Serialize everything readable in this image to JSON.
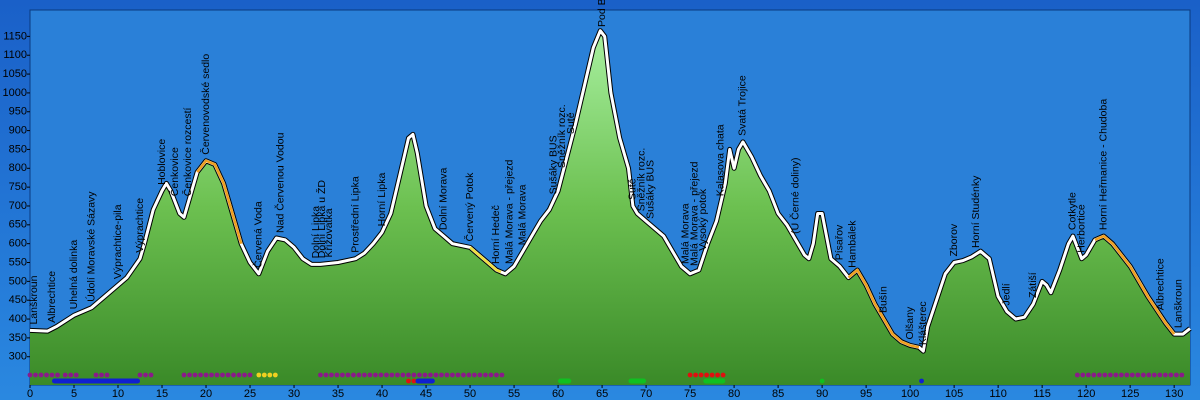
{
  "chart_data": {
    "type": "profile",
    "x": [
      0,
      2,
      3,
      5,
      7,
      9,
      11,
      12.5,
      13,
      14,
      15,
      15.5,
      16,
      17,
      17.5,
      18,
      19,
      20,
      21,
      22,
      23,
      24,
      25,
      26,
      27,
      28,
      29,
      30,
      31,
      32,
      33,
      35,
      37,
      38,
      39,
      40,
      41,
      42,
      43,
      43.5,
      44,
      45,
      46,
      47,
      48,
      50,
      51,
      52,
      53,
      54,
      55,
      56,
      57,
      58,
      59,
      60,
      61,
      62,
      63,
      64,
      64.8,
      65.3,
      66,
      67,
      68,
      68.5,
      69,
      70,
      72,
      73,
      74,
      75,
      76,
      77,
      78,
      79,
      79.5,
      80,
      80.5,
      81,
      82,
      83,
      84,
      85,
      86,
      87,
      88,
      88.5,
      89,
      89.5,
      90,
      90.5,
      91,
      92,
      93,
      94,
      95,
      96,
      97,
      98,
      99,
      100,
      101,
      101.5,
      102,
      103,
      104,
      105,
      106,
      107,
      108,
      109,
      110,
      111,
      112,
      113,
      114,
      115,
      115.5,
      116,
      117,
      118,
      118.5,
      119,
      119.5,
      120,
      121,
      122,
      123,
      125,
      127,
      129,
      130,
      131,
      131.8
    ],
    "values": [
      370,
      368,
      380,
      410,
      430,
      470,
      510,
      560,
      600,
      690,
      740,
      760,
      740,
      680,
      670,
      710,
      790,
      820,
      810,
      760,
      680,
      600,
      550,
      520,
      580,
      615,
      610,
      590,
      560,
      545,
      545,
      550,
      560,
      575,
      600,
      630,
      680,
      780,
      880,
      890,
      840,
      700,
      640,
      620,
      600,
      590,
      570,
      550,
      530,
      520,
      540,
      580,
      620,
      660,
      690,
      740,
      830,
      920,
      1020,
      1120,
      1165,
      1150,
      1000,
      880,
      800,
      700,
      680,
      660,
      620,
      580,
      540,
      520,
      530,
      600,
      660,
      760,
      850,
      800,
      850,
      870,
      830,
      780,
      740,
      680,
      650,
      610,
      570,
      560,
      600,
      680,
      680,
      620,
      560,
      540,
      510,
      530,
      490,
      440,
      400,
      360,
      340,
      330,
      325,
      315,
      380,
      450,
      520,
      550,
      555,
      565,
      580,
      560,
      460,
      420,
      400,
      405,
      440,
      500,
      490,
      470,
      530,
      600,
      620,
      590,
      560,
      570,
      610,
      620,
      600,
      540,
      460,
      390,
      360,
      360,
      375
    ],
    "color": "#5cbf3c",
    "highlights": [
      {
        "x0": 19,
        "x1": 24,
        "color": "#f0a020"
      },
      {
        "x0": 50,
        "x1": 53.5,
        "color": "#f0e040"
      },
      {
        "x0": 93,
        "x1": 101,
        "color": "#f0a020"
      },
      {
        "x0": 121,
        "x1": 130,
        "color": "#f0a020"
      }
    ],
    "markers": [
      {
        "x0": 0,
        "x1": 3.5,
        "color": "#8a1a8a",
        "row": 1
      },
      {
        "x0": 4,
        "x1": 5.5,
        "color": "#8a1a8a",
        "row": 1
      },
      {
        "x0": 7.5,
        "x1": 9,
        "color": "#8a1a8a",
        "row": 1
      },
      {
        "x0": 12.5,
        "x1": 14,
        "color": "#8a1a8a",
        "row": 1
      },
      {
        "x0": 17.5,
        "x1": 25,
        "color": "#8a1a8a",
        "row": 1
      },
      {
        "x0": 26,
        "x1": 28,
        "color": "#f0d020",
        "row": 1
      },
      {
        "x0": 33,
        "x1": 54,
        "color": "#8a1a8a",
        "row": 1
      },
      {
        "x0": 43,
        "x1": 43.8,
        "color": "#e01010",
        "row": 2
      },
      {
        "x0": 60,
        "x1": 61.5,
        "color": "#10c020",
        "row": 2
      },
      {
        "x0": 68,
        "x1": 70,
        "color": "#10c020",
        "row": 2
      },
      {
        "x0": 75,
        "x1": 79,
        "color": "#e01010",
        "row": 1
      },
      {
        "x0": 76.5,
        "x1": 79,
        "color": "#10c020",
        "row": 2
      },
      {
        "x0": 90,
        "x1": 90.5,
        "color": "#10c020",
        "row": 2
      },
      {
        "x0": 119,
        "x1": 131,
        "color": "#8a1a8a",
        "row": 1
      },
      {
        "x0": 2.5,
        "x1": 12.5,
        "color": "#1020d0",
        "row": 2
      },
      {
        "x0": 43.8,
        "x1": 46,
        "color": "#1020d0",
        "row": 2
      },
      {
        "x0": 101.3,
        "x1": 101.8,
        "color": "#1020d0",
        "row": 2
      }
    ],
    "annotations": [
      {
        "text": "Lanškroun",
        "x": 0.5
      },
      {
        "text": "Albrechtice",
        "x": 2.5
      },
      {
        "text": "Uhelná dolinka",
        "x": 5
      },
      {
        "text": "Údolí Moravské Sázavy",
        "x": 7
      },
      {
        "text": "Výprachtice-pila",
        "x": 10
      },
      {
        "text": "Výprachtice",
        "x": 12.5
      },
      {
        "text": "Hoblovice",
        "x": 15
      },
      {
        "text": "Čenkovice",
        "x": 16.5
      },
      {
        "text": "Čenkovice rozcestí",
        "x": 18
      },
      {
        "text": "Červenovodské sedlo",
        "x": 20
      },
      {
        "text": "Červená Voda",
        "x": 26
      },
      {
        "text": "Nad Červenou Vodou",
        "x": 28.5
      },
      {
        "text": "Dolní Lipka",
        "x": 32.5
      },
      {
        "text": "Dolní Lipka u ŽD",
        "x": 33.2
      },
      {
        "text": "Křižovatka",
        "x": 34
      },
      {
        "text": "Prostřední Lipka",
        "x": 37
      },
      {
        "text": "Horní Lipka",
        "x": 40
      },
      {
        "text": "Dolní Morava",
        "x": 47
      },
      {
        "text": "Červený Potok",
        "x": 50
      },
      {
        "text": "Horní Hedeč",
        "x": 53
      },
      {
        "text": "Malá Morava - přejezd",
        "x": 54.5
      },
      {
        "text": "Malá Morava",
        "x": 56
      },
      {
        "text": "Sušáky BUS",
        "x": 59.5
      },
      {
        "text": "Sněžník rozc.",
        "x": 60.5
      },
      {
        "text": "Sutě",
        "x": 61.5
      },
      {
        "text": "Pod Babuší",
        "x": 65
      },
      {
        "text": "Sutě",
        "x": 68.5
      },
      {
        "text": "Sněžník rozc.",
        "x": 69.5
      },
      {
        "text": "Sušáky BUS",
        "x": 70.5
      },
      {
        "text": "Malá Morava",
        "x": 74.5
      },
      {
        "text": "Malá Morava - přejezd",
        "x": 75.5
      },
      {
        "text": "Vysoký potok",
        "x": 76.5
      },
      {
        "text": "Kalasova chata",
        "x": 78.5
      },
      {
        "text": "Svatá Trojice",
        "x": 81
      },
      {
        "text": "(U Černé doliny)",
        "x": 87
      },
      {
        "text": "Písařov",
        "x": 92
      },
      {
        "text": "Hambálek",
        "x": 93.5
      },
      {
        "text": "Bušín",
        "x": 97
      },
      {
        "text": "Olšany",
        "x": 100
      },
      {
        "text": "Klášterec",
        "x": 101.5
      },
      {
        "text": "Zborov",
        "x": 105
      },
      {
        "text": "Horní Studénky",
        "x": 107.5
      },
      {
        "text": "Jedlí",
        "x": 111
      },
      {
        "text": "Zátiší",
        "x": 114
      },
      {
        "text": "Cotkytle",
        "x": 118.5
      },
      {
        "text": "Herbortice",
        "x": 119.5
      },
      {
        "text": "Horní Heřmanice - Chudoba",
        "x": 122
      },
      {
        "text": "Albrechtice",
        "x": 128.5
      },
      {
        "text": "Lanškroun",
        "x": 130.5
      }
    ],
    "xlim": [
      0,
      131.8
    ],
    "ylim": [
      225,
      1220
    ],
    "xticks": [
      0,
      5,
      10,
      15,
      20,
      25,
      30,
      35,
      40,
      45,
      50,
      55,
      60,
      65,
      70,
      75,
      80,
      85,
      90,
      95,
      100,
      105,
      110,
      115,
      120,
      125,
      130
    ],
    "yticks": [
      300,
      350,
      400,
      450,
      500,
      550,
      600,
      650,
      700,
      750,
      800,
      850,
      900,
      950,
      1000,
      1050,
      1100,
      1150
    ],
    "grid": false
  }
}
